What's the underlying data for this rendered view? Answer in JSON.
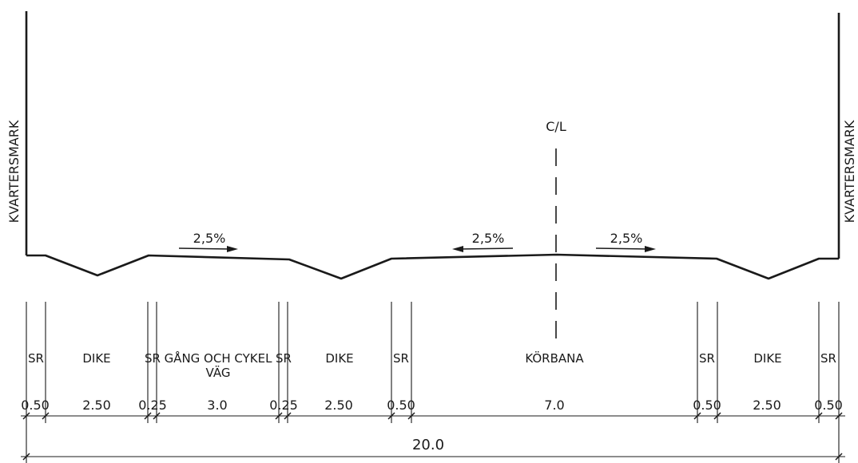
{
  "side_labels": {
    "left": "KVARTERSMARK",
    "right": "KVARTERSMARK"
  },
  "centerline": {
    "label": "C/L"
  },
  "slopes": [
    "2,5%",
    "2,5%",
    "2,5%"
  ],
  "sections": {
    "sr_1": "SR",
    "dike_1": "DIKE",
    "sr_2": "SR",
    "gcv_line1": "GÅNG OCH CYKEL",
    "gcv_line2": "VÄG",
    "sr_3": "SR",
    "dike_2": "DIKE",
    "sr_4": "SR",
    "korbana": "KÖRBANA",
    "sr_5": "SR",
    "dike_3": "DIKE",
    "sr_6": "SR"
  },
  "dimensions": {
    "d1": "0.50",
    "d2": "2.50",
    "d3": "0.25",
    "d4": "3.0",
    "d5": "0.25",
    "d6": "2.50",
    "d7": "0.50",
    "d8": "7.0",
    "d9": "0.50",
    "d10": "2.50",
    "d11": "0.50",
    "total": "20.0"
  }
}
